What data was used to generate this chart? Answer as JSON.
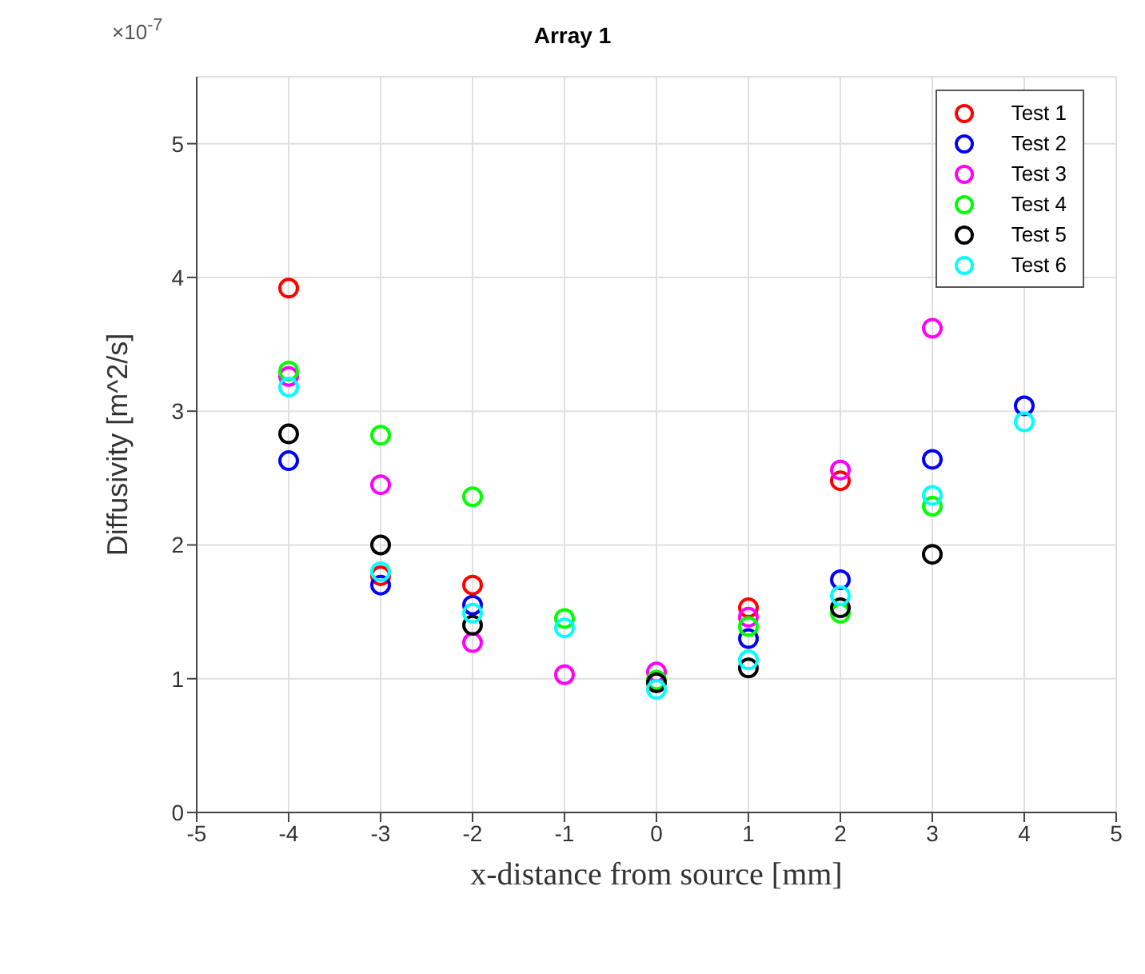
{
  "chart_data": {
    "type": "scatter",
    "title": "Array 1",
    "xlabel": "x-distance from source [mm]",
    "ylabel": "Diffusivity [m^2/s]",
    "annotations": [
      "×10$^{-7}$"
    ],
    "x": [
      -4,
      -3,
      -2,
      -1,
      0,
      1,
      2,
      3,
      4
    ],
    "series": [
      {
        "name": "Test 1",
        "color": "#ff0000",
        "values": [
          3.92,
          1.77,
          1.7,
          null,
          null,
          1.53,
          2.48,
          null,
          null
        ]
      },
      {
        "name": "Test 2",
        "color": "#0000ff",
        "values": [
          2.63,
          1.7,
          1.55,
          null,
          null,
          1.3,
          1.74,
          2.64,
          3.04
        ]
      },
      {
        "name": "Test 3",
        "color": "#ff00ff",
        "values": [
          3.26,
          2.45,
          1.27,
          1.03,
          1.05,
          1.46,
          2.56,
          3.62,
          null
        ]
      },
      {
        "name": "Test 4",
        "color": "#00ff00",
        "values": [
          3.3,
          2.82,
          2.36,
          1.45,
          0.99,
          1.39,
          1.49,
          2.29,
          null
        ]
      },
      {
        "name": "Test 5",
        "color": "#000000",
        "values": [
          2.83,
          2.0,
          1.4,
          null,
          0.97,
          1.08,
          1.53,
          1.93,
          null
        ]
      },
      {
        "name": "Test 6",
        "color": "#00ffff",
        "values": [
          3.18,
          1.8,
          1.49,
          1.38,
          0.92,
          1.14,
          1.62,
          2.37,
          2.92
        ]
      }
    ],
    "xlim": [
      -5,
      5
    ],
    "xticks": [
      -5,
      -4,
      -3,
      -2,
      -1,
      0,
      1,
      2,
      3,
      4,
      5
    ],
    "ylim": [
      0,
      5.5
    ],
    "yticks": [
      0,
      1,
      2,
      3,
      4,
      5
    ],
    "grid": true,
    "legend": "top right",
    "marker": "circle"
  }
}
